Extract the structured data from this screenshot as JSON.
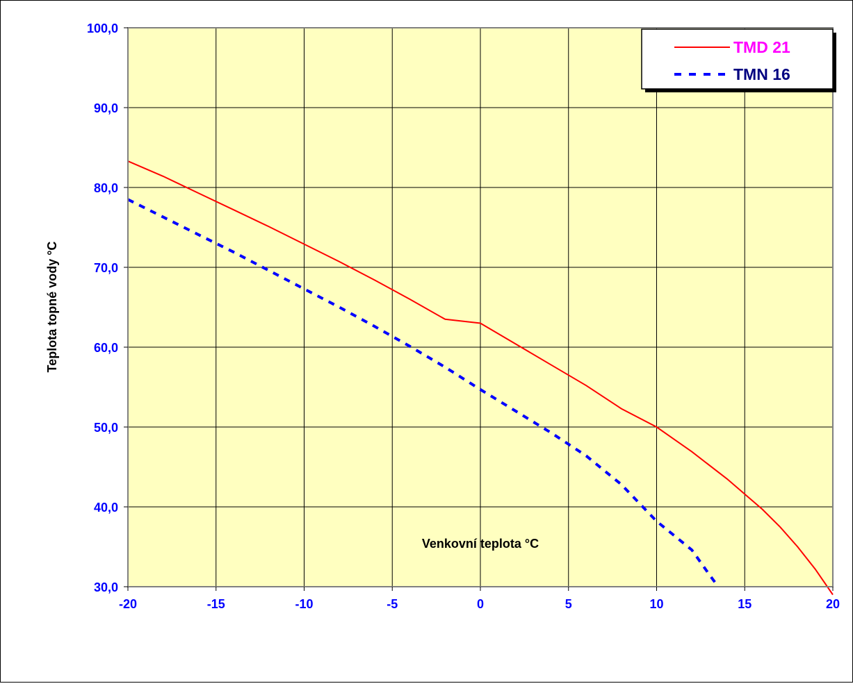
{
  "chart_data": {
    "type": "line",
    "title": "",
    "xlabel": "Venkovní teplota °C",
    "ylabel": "Teplota topné vody °C",
    "xlim": [
      -20,
      20
    ],
    "ylim": [
      30,
      100
    ],
    "x_ticks": [
      -20,
      -15,
      -10,
      -5,
      0,
      5,
      10,
      15,
      20
    ],
    "x_tick_labels": [
      "-20",
      "-15",
      "-10",
      "-5",
      "0",
      "5",
      "10",
      "15",
      "20"
    ],
    "y_ticks": [
      30,
      40,
      50,
      60,
      70,
      80,
      90,
      100
    ],
    "y_tick_labels": [
      "30,0",
      "40,0",
      "50,0",
      "60,0",
      "70,0",
      "80,0",
      "90,0",
      "100,0"
    ],
    "grid": true,
    "legend_position": "top-right",
    "plot_background": "#ffffc0",
    "series": [
      {
        "name": "TMD 21",
        "color": "#ff0000",
        "legend_text_color": "#ff00ff",
        "style": "solid",
        "x": [
          -20,
          -18,
          -16,
          -14,
          -12,
          -10,
          -8,
          -6,
          -4,
          -2,
          0,
          2,
          4,
          6,
          8,
          10,
          12,
          14,
          16,
          17,
          18,
          19,
          20
        ],
        "y": [
          83.3,
          81.4,
          79.3,
          77.2,
          75.1,
          72.9,
          70.7,
          68.4,
          66.0,
          63.5,
          63.0,
          60.4,
          57.8,
          55.2,
          52.3,
          50.0,
          46.9,
          43.5,
          39.7,
          37.5,
          35.0,
          32.2,
          29.0
        ]
      },
      {
        "name": "TMN 16",
        "color": "#0000ff",
        "legend_text_color": "#000080",
        "style": "dashed",
        "x": [
          -20,
          -18,
          -16,
          -14,
          -12,
          -10,
          -8,
          -6,
          -4,
          -2,
          0,
          2,
          4,
          6,
          8,
          10,
          11,
          12,
          13,
          13.5
        ],
        "y": [
          78.5,
          76.3,
          74.1,
          71.9,
          69.6,
          67.3,
          65.0,
          62.6,
          60.1,
          57.5,
          54.7,
          52.0,
          49.3,
          46.4,
          42.8,
          38.2,
          36.4,
          34.6,
          31.5,
          30.0
        ]
      }
    ]
  }
}
